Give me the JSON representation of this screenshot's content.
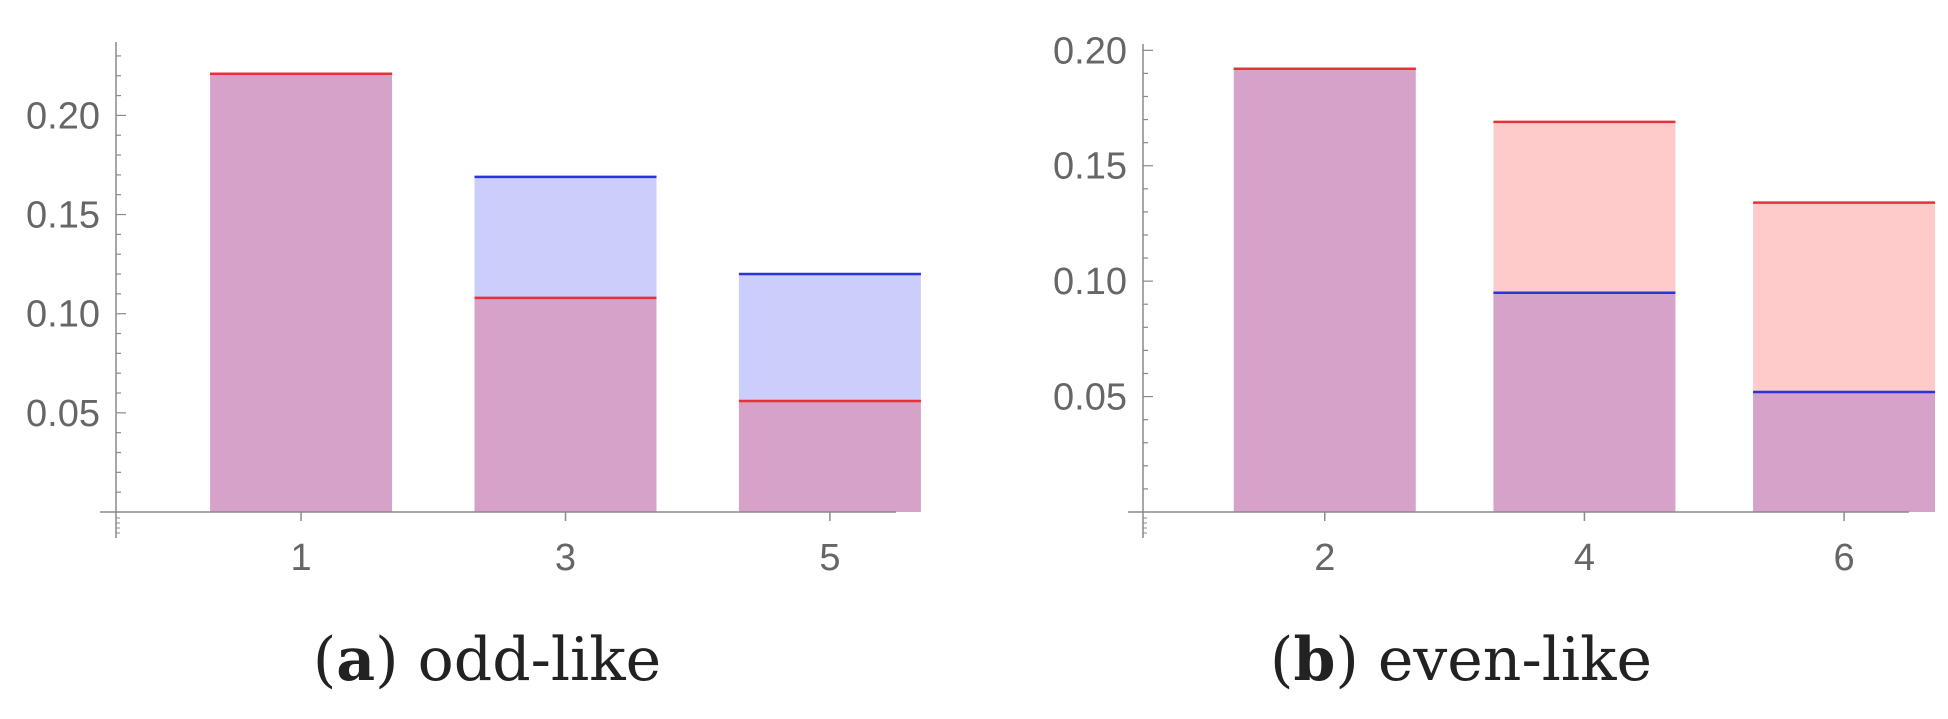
{
  "colors": {
    "red_line": "#e8303a",
    "blue_line": "#2a35d8",
    "overlap_fill": "#d6a2ca",
    "blue_fill": "#cbcdfb",
    "red_fill": "#fecbca",
    "axis": "#8a8a8a",
    "tick_text": "#666666"
  },
  "panels": [
    {
      "caption_letter": "a",
      "caption_text": "odd-like"
    },
    {
      "caption_letter": "b",
      "caption_text": "even-like"
    }
  ],
  "chart_data": [
    {
      "type": "bar",
      "categories": [
        "1",
        "3",
        "5"
      ],
      "series": [
        {
          "color": "red",
          "values": [
            0.221,
            0.108,
            0.056
          ]
        },
        {
          "color": "blue",
          "values": [
            0.221,
            0.169,
            0.12
          ]
        }
      ],
      "yticks": [
        "0.05",
        "0.10",
        "0.15",
        "0.20"
      ],
      "ylim": [
        0,
        0.235
      ],
      "xlim": [
        -0.4,
        5.5
      ],
      "grid": false
    },
    {
      "type": "bar",
      "categories": [
        "2",
        "4",
        "6"
      ],
      "series": [
        {
          "color": "red",
          "values": [
            0.192,
            0.169,
            0.134
          ]
        },
        {
          "color": "blue",
          "values": [
            0.192,
            0.095,
            0.052
          ]
        }
      ],
      "yticks": [
        "0.05",
        "0.10",
        "0.15",
        "0.20"
      ],
      "ylim": [
        0,
        0.201
      ],
      "xlim": [
        0.6,
        6.5
      ],
      "grid": false
    }
  ]
}
